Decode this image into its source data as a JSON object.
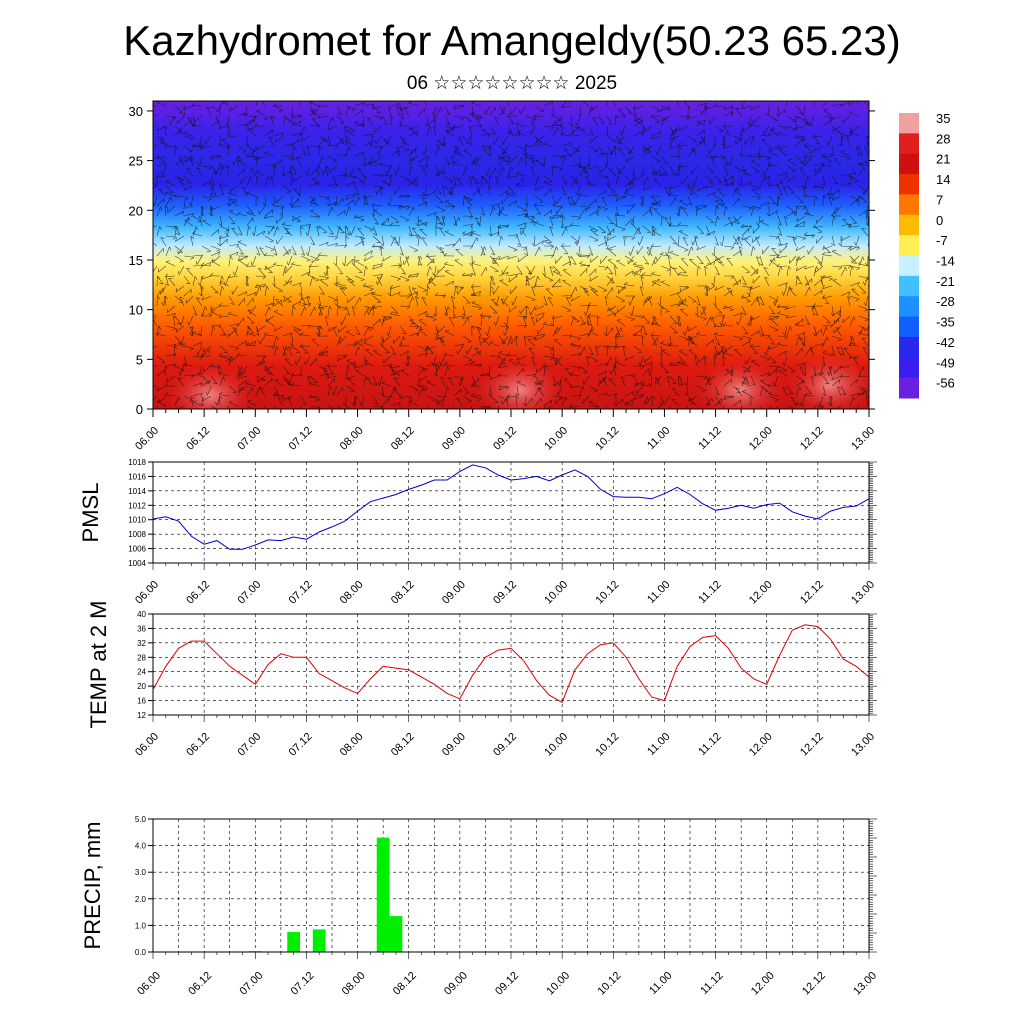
{
  "header": {
    "title": "Kazhydromet for Amangeldy(50.23 65.23)",
    "subtitle": "06 ☆☆☆☆☆☆☆☆ 2025"
  },
  "time_labels": [
    "06.00",
    "06.12",
    "07.00",
    "07.12",
    "08.00",
    "08.12",
    "09.00",
    "09.12",
    "10.00",
    "10.12",
    "11.00",
    "11.12",
    "12.00",
    "12.12",
    "13.00"
  ],
  "chart_data": [
    {
      "id": "cross-section",
      "type": "heatmap",
      "title": "",
      "x": [
        "06.00",
        "06.12",
        "07.00",
        "07.12",
        "08.00",
        "08.12",
        "09.00",
        "09.12",
        "10.00",
        "10.12",
        "11.00",
        "11.12",
        "12.00",
        "12.12",
        "13.00"
      ],
      "y_ticks": [
        0,
        5,
        10,
        15,
        20,
        25,
        30
      ],
      "ylim": [
        0,
        31
      ],
      "colorbar": {
        "labels": [
          "35",
          "28",
          "21",
          "14",
          "7",
          "0",
          "-7",
          "-14",
          "-21",
          "-28",
          "-35",
          "-42",
          "-49",
          "-56"
        ],
        "colors": [
          "#f0a0a0",
          "#e02020",
          "#d01010",
          "#ee3300",
          "#ff7700",
          "#ffbb00",
          "#ffee55",
          "#c8f0ff",
          "#40c0ff",
          "#1e90ff",
          "#1060ff",
          "#2828ee",
          "#3a1ef0",
          "#6a20e0"
        ]
      },
      "wind_barbs": true
    },
    {
      "id": "pmsl",
      "type": "line",
      "ylabel": "PMSL",
      "ylim": [
        1004,
        1018
      ],
      "y_ticks": [
        1004,
        1006,
        1008,
        1010,
        1012,
        1014,
        1016,
        1018
      ],
      "color": "#0000cc",
      "x": [
        "06.00",
        "06.03",
        "06.06",
        "06.09",
        "06.12",
        "06.15",
        "06.18",
        "06.21",
        "07.00",
        "07.03",
        "07.06",
        "07.09",
        "07.12",
        "07.15",
        "07.18",
        "07.21",
        "08.00",
        "08.03",
        "08.06",
        "08.09",
        "08.12",
        "08.15",
        "08.18",
        "08.21",
        "09.00",
        "09.03",
        "09.06",
        "09.09",
        "09.12",
        "09.15",
        "09.18",
        "09.21",
        "10.00",
        "10.03",
        "10.06",
        "10.09",
        "10.12",
        "10.15",
        "10.18",
        "10.21",
        "11.00",
        "11.03",
        "11.06",
        "11.09",
        "11.12",
        "11.15",
        "11.18",
        "11.21",
        "12.00",
        "12.03",
        "12.06",
        "12.09",
        "12.12",
        "12.15",
        "12.18",
        "12.21",
        "13.00"
      ],
      "values": [
        1010.1,
        1010.4,
        1009.8,
        1007.7,
        1006.6,
        1007.1,
        1005.9,
        1005.9,
        1006.5,
        1007.2,
        1007.1,
        1007.6,
        1007.3,
        1008.3,
        1009.0,
        1009.8,
        1011.2,
        1012.5,
        1013.0,
        1013.5,
        1014.2,
        1014.8,
        1015.5,
        1015.5,
        1016.7,
        1017.6,
        1017.2,
        1016.2,
        1015.5,
        1015.7,
        1016.0,
        1015.4,
        1016.2,
        1016.9,
        1016.0,
        1014.2,
        1013.2,
        1013.1,
        1013.1,
        1012.9,
        1013.6,
        1014.5,
        1013.5,
        1012.2,
        1011.3,
        1011.6,
        1012.0,
        1011.6,
        1012.1,
        1012.3,
        1011.1,
        1010.5,
        1010.1,
        1011.2,
        1011.7,
        1011.9,
        1012.9
      ]
    },
    {
      "id": "temp2m",
      "type": "line",
      "ylabel": "TEMP at 2 M",
      "ylim": [
        12,
        40
      ],
      "y_ticks": [
        12,
        16,
        20,
        24,
        28,
        32,
        36,
        40
      ],
      "color": "#dd0000",
      "x": [
        "06.00",
        "06.03",
        "06.06",
        "06.09",
        "06.12",
        "06.15",
        "06.18",
        "06.21",
        "07.00",
        "07.03",
        "07.06",
        "07.09",
        "07.12",
        "07.15",
        "07.18",
        "07.21",
        "08.00",
        "08.03",
        "08.06",
        "08.09",
        "08.12",
        "08.15",
        "08.18",
        "08.21",
        "09.00",
        "09.03",
        "09.06",
        "09.09",
        "09.12",
        "09.15",
        "09.18",
        "09.21",
        "10.00",
        "10.03",
        "10.06",
        "10.09",
        "10.12",
        "10.15",
        "10.18",
        "10.21",
        "11.00",
        "11.03",
        "11.06",
        "11.09",
        "11.12",
        "11.15",
        "11.18",
        "11.21",
        "12.00",
        "12.03",
        "12.06",
        "12.09",
        "12.12",
        "12.15",
        "12.18",
        "12.21",
        "13.00"
      ],
      "values": [
        19.0,
        25.5,
        30.5,
        32.5,
        32.5,
        29.0,
        25.5,
        23.0,
        20.5,
        26.0,
        29.0,
        28.0,
        28.0,
        23.5,
        21.5,
        19.5,
        18.0,
        22.0,
        25.5,
        25.0,
        24.5,
        22.5,
        20.5,
        18.0,
        16.5,
        23.0,
        28.0,
        30.0,
        30.5,
        27.0,
        21.5,
        17.5,
        15.5,
        24.5,
        29.0,
        31.5,
        32.0,
        28.0,
        22.0,
        17.0,
        16.0,
        25.5,
        31.0,
        33.5,
        34.0,
        30.5,
        25.0,
        22.0,
        20.5,
        28.5,
        35.5,
        37.0,
        36.5,
        33.0,
        27.5,
        25.5,
        22.5
      ]
    },
    {
      "id": "precip",
      "type": "bar",
      "ylabel": "PRECIP, mm",
      "ylim": [
        0,
        5
      ],
      "y_ticks": [
        "0.0",
        "1.0",
        "2.0",
        "3.0",
        "4.0",
        "5.0"
      ],
      "color": "#00ee00",
      "x": [
        "07.00",
        "07.09",
        "07.15",
        "08.06",
        "08.09"
      ],
      "values": [
        0.03,
        0.75,
        0.85,
        4.3,
        1.35
      ]
    }
  ]
}
